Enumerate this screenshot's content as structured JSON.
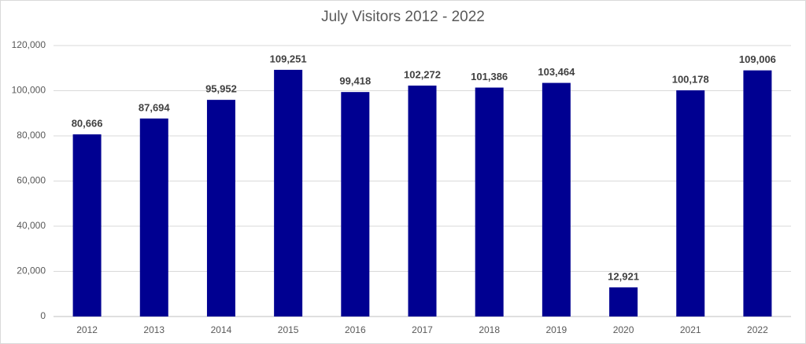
{
  "chart_data": {
    "type": "bar",
    "title": "July Visitors 2012 - 2022",
    "categories": [
      "2012",
      "2013",
      "2014",
      "2015",
      "2016",
      "2017",
      "2018",
      "2019",
      "2020",
      "2021",
      "2022"
    ],
    "values": [
      80666,
      87694,
      95952,
      109251,
      99418,
      102272,
      101386,
      103464,
      12921,
      100178,
      109006
    ],
    "value_labels": [
      "80,666",
      "87,694",
      "95,952",
      "109,251",
      "99,418",
      "102,272",
      "101,386",
      "103,464",
      "12,921",
      "100,178",
      "109,006"
    ],
    "color": "#000091",
    "ylim": [
      0,
      120000
    ],
    "yticks": [
      0,
      {
        "value": 20000,
        "label": "20,000"
      },
      {
        "value": 40000,
        "label": "40,000"
      },
      {
        "value": 60000,
        "label": "60,000"
      },
      {
        "value": 80000,
        "label": "80,000"
      },
      {
        "value": 100000,
        "label": "100,000"
      },
      {
        "value": 120000,
        "label": "120,000"
      }
    ],
    "grid": true
  }
}
